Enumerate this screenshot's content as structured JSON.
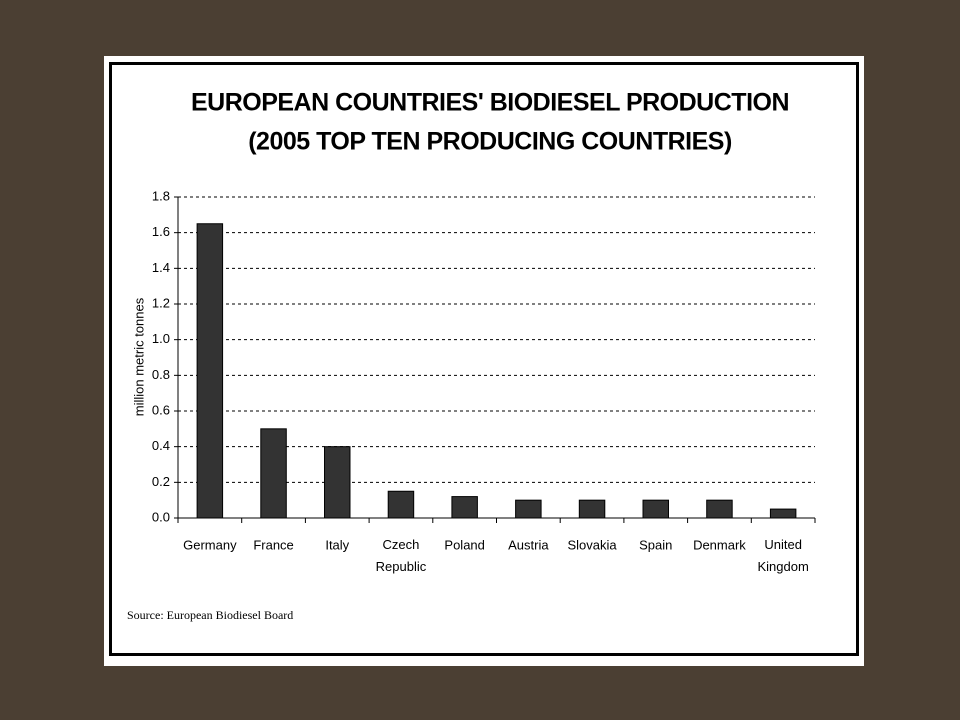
{
  "chart_data": {
    "type": "bar",
    "title": "EUROPEAN COUNTRIES' BIODIESEL PRODUCTION",
    "subtitle": "(2005 TOP TEN PRODUCING COUNTRIES)",
    "y_label": "million metric tonnes",
    "source": "Source: European Biodiesel Board",
    "categories": [
      "Germany",
      "France",
      "Italy",
      "Czech Republic",
      "Poland",
      "Austria",
      "Slovakia",
      "Spain",
      "Denmark",
      "United Kingdom"
    ],
    "values": [
      1.65,
      0.5,
      0.4,
      0.15,
      0.12,
      0.1,
      0.1,
      0.1,
      0.1,
      0.05
    ],
    "color": "#333333",
    "ylim": [
      0,
      1.8
    ],
    "yticks": [
      {
        "value": 0,
        "label": "0.0"
      },
      0.2,
      0.4,
      0.6,
      0.8,
      {
        "value": 1,
        "label": "1.0"
      },
      1.2,
      1.4,
      1.6,
      1.8
    ],
    "grid": true
  }
}
